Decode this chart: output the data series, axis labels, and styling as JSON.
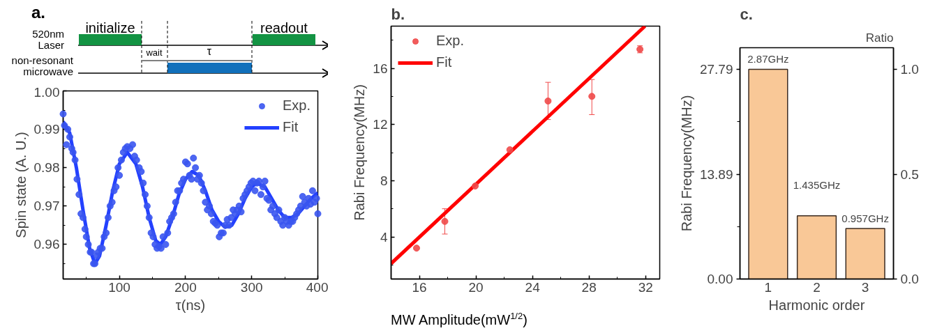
{
  "chart_data": [
    {
      "type": "other",
      "title": "a.",
      "annotations": [
        "520nm\nLaser",
        "non-resonant\nmicrowave",
        "initialize",
        "readout",
        "wait",
        "τ"
      ]
    },
    {
      "type": "line",
      "xlabel": "τ(ns)",
      "ylabel": "Spin state (A. U.)",
      "xlim": [
        15,
        400
      ],
      "ylim": [
        0.951,
        1.0
      ],
      "xticks": [
        {
          "value": 50,
          "label": null
        },
        100,
        {
          "value": 150,
          "label": null
        },
        200,
        {
          "value": 250,
          "label": null
        },
        300,
        {
          "value": 350,
          "label": null
        },
        400
      ],
      "yticks": [
        {
          "value": 0.955,
          "label": null
        },
        0.96,
        {
          "value": 0.965,
          "label": null
        },
        0.97,
        {
          "value": 0.975,
          "label": null
        },
        0.98,
        {
          "value": 0.985,
          "label": null
        },
        0.99,
        {
          "value": 0.995,
          "label": null
        },
        {
          "value": 1.0,
          "label": "1.00"
        }
      ],
      "grid": false,
      "legend": "top right",
      "series": [
        {
          "name": "Exp.",
          "type": "scatter",
          "marker": "circle",
          "color": "#3a55f0",
          "x": [
            15,
            17,
            20,
            22,
            25,
            28,
            30,
            33,
            36,
            39,
            42,
            45,
            48,
            50,
            53,
            56,
            58,
            61,
            63,
            66,
            68,
            71,
            74,
            77,
            80,
            83,
            86,
            89,
            92,
            95,
            98,
            100,
            103,
            106,
            109,
            112,
            116,
            120,
            123,
            126,
            130,
            133,
            136,
            139,
            142,
            145,
            148,
            151,
            154,
            157,
            160,
            163,
            166,
            170,
            173,
            176,
            179,
            182,
            185,
            188,
            191,
            194,
            197,
            200,
            203,
            206,
            209,
            212,
            215,
            218,
            221,
            224,
            227,
            230,
            233,
            236,
            239,
            242,
            245,
            248,
            251,
            254,
            257,
            260,
            263,
            266,
            269,
            272,
            275,
            278,
            281,
            284,
            287,
            290,
            293,
            296,
            299,
            302,
            305,
            308,
            311,
            314,
            317,
            320,
            323,
            326,
            329,
            332,
            335,
            338,
            341,
            344,
            347,
            350,
            353,
            356,
            359,
            362,
            365,
            368,
            371,
            374,
            377,
            380,
            383,
            386,
            389,
            392,
            395,
            398,
            400
          ],
          "values": [
            0.994,
            0.991,
            0.986,
            0.99,
            0.988,
            0.985,
            0.984,
            0.982,
            0.977,
            0.973,
            0.968,
            0.967,
            0.964,
            0.962,
            0.96,
            0.958,
            0.958,
            0.955,
            0.955,
            0.957,
            0.958,
            0.959,
            0.959,
            0.962,
            0.963,
            0.967,
            0.97,
            0.971,
            0.974,
            0.975,
            0.98,
            0.978,
            0.982,
            0.984,
            0.985,
            0.9855,
            0.985,
            0.986,
            0.983,
            0.982,
            0.98,
            0.979,
            0.976,
            0.973,
            0.97,
            0.967,
            0.963,
            0.962,
            0.96,
            0.959,
            0.9595,
            0.959,
            0.962,
            0.96,
            0.963,
            0.966,
            0.967,
            0.968,
            0.971,
            0.974,
            0.974,
            0.976,
            0.977,
            0.9815,
            0.981,
            0.978,
            0.977,
            0.9825,
            0.98,
            0.977,
            0.978,
            0.976,
            0.974,
            0.971,
            0.969,
            0.97,
            0.968,
            0.966,
            0.9655,
            0.965,
            0.962,
            0.963,
            0.963,
            0.965,
            0.9665,
            0.965,
            0.967,
            0.969,
            0.968,
            0.969,
            0.97,
            0.9685,
            0.972,
            0.973,
            0.974,
            0.975,
            0.976,
            0.9765,
            0.974,
            0.976,
            0.9765,
            0.973,
            0.975,
            0.9765,
            0.972,
            0.9715,
            0.969,
            0.97,
            0.968,
            0.967,
            0.969,
            0.966,
            0.965,
            0.967,
            0.966,
            0.965,
            0.966,
            0.966,
            0.967,
            0.968,
            0.969,
            0.97,
            0.9725,
            0.971,
            0.97,
            0.972,
            0.9705,
            0.974,
            0.971,
            0.972,
            0.968
          ]
        },
        {
          "name": "Fit",
          "type": "line",
          "line_style": "solid",
          "color": "#2340ff",
          "x": [
            15,
            25,
            35,
            45,
            55,
            63,
            70,
            80,
            90,
            100,
            112,
            125,
            135,
            145,
            155,
            162,
            170,
            180,
            190,
            200,
            210,
            220,
            230,
            240,
            250,
            260,
            270,
            280,
            290,
            300,
            308,
            320,
            330,
            340,
            350,
            360,
            370,
            380,
            390,
            400
          ],
          "values": [
            0.992,
            0.989,
            0.98,
            0.969,
            0.959,
            0.955,
            0.957,
            0.965,
            0.974,
            0.981,
            0.984,
            0.981,
            0.975,
            0.967,
            0.961,
            0.96,
            0.962,
            0.967,
            0.973,
            0.977,
            0.979,
            0.978,
            0.974,
            0.969,
            0.966,
            0.9645,
            0.965,
            0.968,
            0.972,
            0.975,
            0.976,
            0.975,
            0.972,
            0.969,
            0.967,
            0.967,
            0.968,
            0.97,
            0.972,
            0.9735
          ]
        }
      ]
    },
    {
      "type": "scatter",
      "title": "b.",
      "xlabel": "MW Amplitude(mW$^{1/2}$)",
      "ylabel": "Rabi Frequency(MHz)",
      "xlim": [
        14,
        33
      ],
      "ylim": [
        1,
        19
      ],
      "xticks": [
        16,
        {
          "value": 18,
          "label": null
        },
        20,
        {
          "value": 22,
          "label": null
        },
        24,
        {
          "value": 26,
          "label": null
        },
        28,
        {
          "value": 30,
          "label": null
        },
        32
      ],
      "yticks": [
        {
          "value": 2,
          "label": null
        },
        4,
        {
          "value": 6,
          "label": null
        },
        8,
        {
          "value": 10,
          "label": null
        },
        12,
        {
          "value": 14,
          "label": null
        },
        16,
        {
          "value": 18,
          "label": null
        }
      ],
      "grid": false,
      "legend": "top left",
      "series": [
        {
          "name": "Exp.",
          "type": "scatter",
          "marker": "circle",
          "color": "#f04a4a",
          "x": [
            15.8,
            17.8,
            19.95,
            22.4,
            25.1,
            28.2,
            31.6
          ],
          "values": [
            3.2,
            5.1,
            7.62,
            10.2,
            13.67,
            14.0,
            17.35
          ],
          "errors": [
            null,
            [
              4.2,
              6.0
            ],
            null,
            null,
            [
              12.35,
              15.0
            ],
            [
              12.7,
              15.2
            ],
            [
              17.1,
              17.6
            ]
          ]
        },
        {
          "name": "Fit",
          "type": "line",
          "line_style": "solid",
          "color": "#ff0000",
          "x": [
            14,
            31.96
          ],
          "values": [
            2.1,
            19
          ]
        }
      ]
    },
    {
      "type": "bar",
      "title": "c.",
      "categories": [
        "1",
        "2",
        "3"
      ],
      "values": [
        27.79,
        8.38,
        6.69
      ],
      "color": "#f9c897",
      "xlabel": "Harmonic order",
      "ylabel": "Rabi Frequency(MHz)",
      "y2label": "Ratio",
      "ylim": [
        0,
        30.65
      ],
      "yticks": [
        {
          "value": 0,
          "label": "0.00"
        },
        {
          "value": 6.95,
          "label": null
        },
        13.89,
        {
          "value": 20.84,
          "label": null
        },
        27.79
      ],
      "y2lim": [
        0,
        1.103
      ],
      "y2ticks": [
        {
          "value": 0,
          "label": "0.0"
        },
        0.5,
        {
          "value": 1,
          "label": "1.0"
        }
      ],
      "grid": false,
      "annotations": [
        {
          "text": "2.87GHz",
          "x": "1",
          "y": 27.79
        },
        {
          "text": "1.435GHz",
          "x": "2",
          "y": 8.38
        },
        {
          "text": "0.957GHz",
          "x": "3",
          "y": 6.69
        }
      ]
    }
  ]
}
